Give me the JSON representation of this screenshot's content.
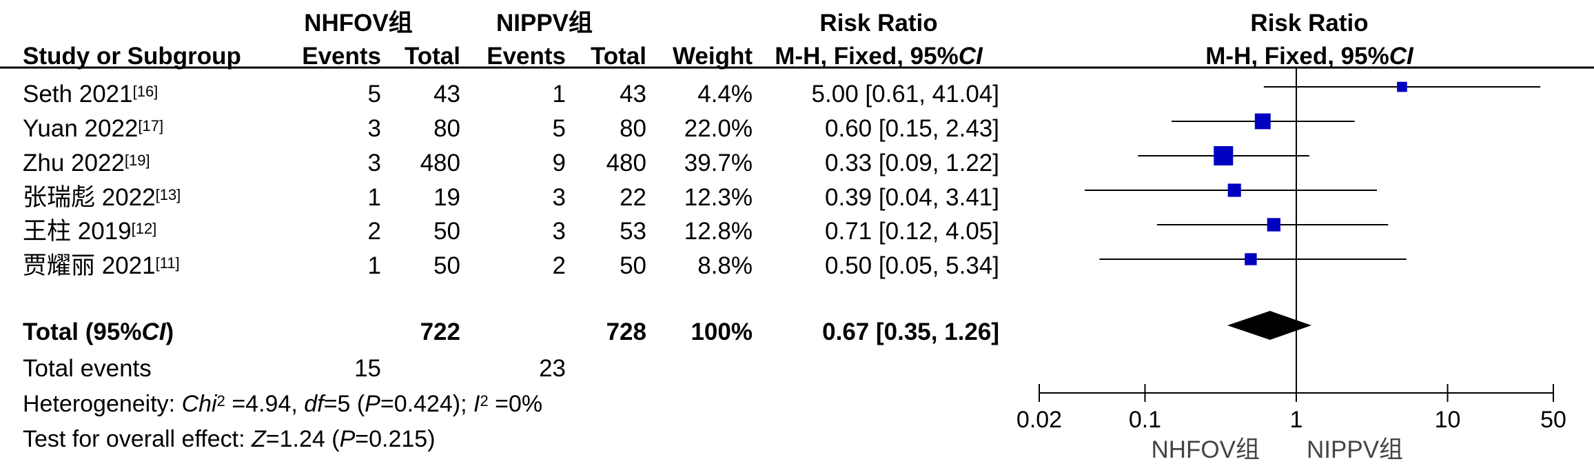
{
  "header": {
    "group1": "NHFOV组",
    "group2": "NIPPV组",
    "rr_title": "Risk Ratio",
    "rr_method": "M-H, Fixed, 95%",
    "ci_abbr": "CI",
    "col_study": "Study or Subgroup",
    "col_events1": "Events",
    "col_total1": "Total",
    "col_events2": "Events",
    "col_total2": "Total",
    "col_weight": "Weight",
    "plot_title": "Risk Ratio",
    "plot_method": "M-H, Fixed, 95%"
  },
  "studies": [
    {
      "name": "Seth 2021",
      "ref": "[16]",
      "e1": "5",
      "t1": "43",
      "e2": "1",
      "t2": "43",
      "weight": "4.4%",
      "rr_text": "5.00 [0.61, 41.04]"
    },
    {
      "name": "Yuan 2022",
      "ref": "[17]",
      "e1": "3",
      "t1": "80",
      "e2": "5",
      "t2": "80",
      "weight": "22.0%",
      "rr_text": "0.60 [0.15, 2.43]"
    },
    {
      "name": "Zhu 2022",
      "ref": "[19]",
      "e1": "3",
      "t1": "480",
      "e2": "9",
      "t2": "480",
      "weight": "39.7%",
      "rr_text": "0.33 [0.09, 1.22]"
    },
    {
      "name": "张瑞彪 2022",
      "ref": "[13]",
      "e1": "1",
      "t1": "19",
      "e2": "3",
      "t2": "22",
      "weight": "12.3%",
      "rr_text": "0.39 [0.04, 3.41]"
    },
    {
      "name": "王柱 2019",
      "ref": "[12]",
      "e1": "2",
      "t1": "50",
      "e2": "3",
      "t2": "53",
      "weight": "12.8%",
      "rr_text": "0.71 [0.12, 4.05]"
    },
    {
      "name": "贾耀丽 2021",
      "ref": "[11]",
      "e1": "1",
      "t1": "50",
      "e2": "2",
      "t2": "50",
      "weight": "8.8%",
      "rr_text": "0.50 [0.05, 5.34]"
    }
  ],
  "total": {
    "label": "Total (95%",
    "label_close": ")",
    "t1": "722",
    "t2": "728",
    "weight": "100%",
    "rr_text": "0.67 [0.35, 1.26]"
  },
  "events": {
    "label": "Total events",
    "e1": "15",
    "e2": "23"
  },
  "heterogeneity": {
    "label": "Heterogeneity: ",
    "chi": "Chi",
    "chi_sup": "2",
    "chi_val": " =4.94, ",
    "df": "df",
    "df_val": "=5 (",
    "p": "P",
    "p_val": "=0.424); ",
    "i": "I",
    "i_sup": "2",
    "i_val": " =0%"
  },
  "overall": {
    "label": "Test for overall effect: ",
    "z": "Z",
    "z_val": "=1.24 (",
    "p": "P",
    "p_val": "=0.215)"
  },
  "axis": {
    "left_label": "NHFOV组",
    "right_label": "NIPPV组"
  },
  "chart_data": {
    "type": "forest",
    "title": "Risk Ratio",
    "subtitle": "M-H, Fixed, 95%CI",
    "x_scale": "log",
    "xlim": [
      0.02,
      50
    ],
    "ticks": [
      0.02,
      0.1,
      1,
      10,
      50
    ],
    "tick_labels": [
      "0.02",
      "0.1",
      "1",
      "10",
      "50"
    ],
    "reference_line": 1,
    "xlabel_left": "NHFOV组",
    "xlabel_right": "NIPPV组",
    "marker_color": "#0000c0",
    "diamond_color": "#000000",
    "studies": [
      {
        "name": "Seth 2021",
        "rr": 5.0,
        "lo": 0.61,
        "hi": 41.04,
        "weight": 4.4
      },
      {
        "name": "Yuan 2022",
        "rr": 0.6,
        "lo": 0.15,
        "hi": 2.43,
        "weight": 22.0
      },
      {
        "name": "Zhu 2022",
        "rr": 0.33,
        "lo": 0.09,
        "hi": 1.22,
        "weight": 39.7
      },
      {
        "name": "张瑞彪 2022",
        "rr": 0.39,
        "lo": 0.04,
        "hi": 3.41,
        "weight": 12.3
      },
      {
        "name": "王柱 2019",
        "rr": 0.71,
        "lo": 0.12,
        "hi": 4.05,
        "weight": 12.8
      },
      {
        "name": "贾耀丽 2021",
        "rr": 0.5,
        "lo": 0.05,
        "hi": 5.34,
        "weight": 8.8
      }
    ],
    "pooled": {
      "rr": 0.67,
      "lo": 0.35,
      "hi": 1.26
    }
  }
}
